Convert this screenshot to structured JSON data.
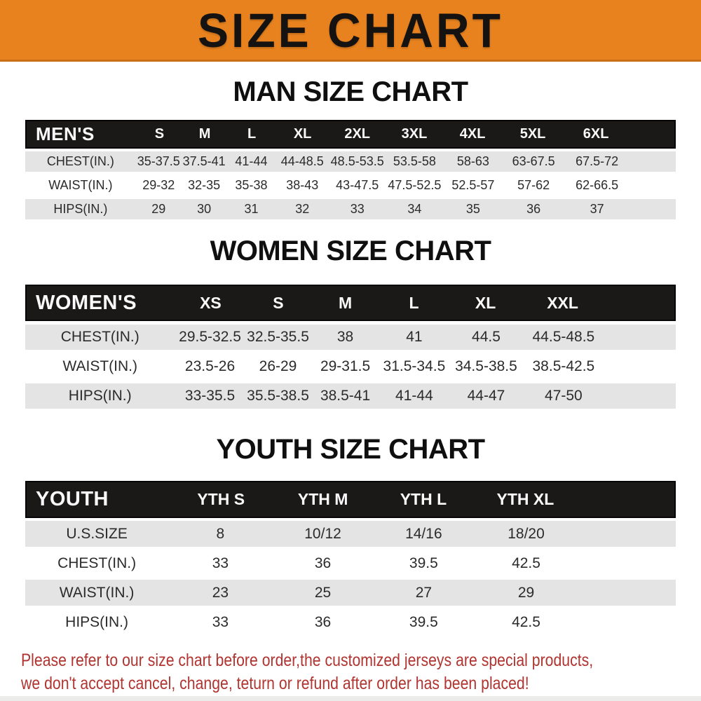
{
  "banner": {
    "title": "SIZE CHART"
  },
  "sections": [
    {
      "heading": "MAN SIZE CHART",
      "table": {
        "header": {
          "label": "MEN'S",
          "columns": [
            "S",
            "M",
            "L",
            "XL",
            "2XL",
            "3XL",
            "4XL",
            "5XL",
            "6XL"
          ]
        },
        "rows": [
          {
            "label": "CHEST(IN.)",
            "values": [
              "35-37.5",
              "37.5-41",
              "41-44",
              "44-48.5",
              "48.5-53.5",
              "53.5-58",
              "58-63",
              "63-67.5",
              "67.5-72"
            ]
          },
          {
            "label": "WAIST(IN.)",
            "values": [
              "29-32",
              "32-35",
              "35-38",
              "38-43",
              "43-47.5",
              "47.5-52.5",
              "52.5-57",
              "57-62",
              "62-66.5"
            ]
          },
          {
            "label": "HIPS(IN.)",
            "values": [
              "29",
              "30",
              "31",
              "32",
              "33",
              "34",
              "35",
              "36",
              "37"
            ]
          }
        ]
      }
    },
    {
      "heading": "WOMEN SIZE CHART",
      "table": {
        "header": {
          "label": "WOMEN'S",
          "columns": [
            "XS",
            "S",
            "M",
            "L",
            "XL",
            "XXL"
          ]
        },
        "rows": [
          {
            "label": "CHEST(IN.)",
            "values": [
              "29.5-32.5",
              "32.5-35.5",
              "38",
              "41",
              "44.5",
              "44.5-48.5"
            ]
          },
          {
            "label": "WAIST(IN.)",
            "values": [
              "23.5-26",
              "26-29",
              "29-31.5",
              "31.5-34.5",
              "34.5-38.5",
              "38.5-42.5"
            ]
          },
          {
            "label": "HIPS(IN.)",
            "values": [
              "33-35.5",
              "35.5-38.5",
              "38.5-41",
              "41-44",
              "44-47",
              "47-50"
            ]
          }
        ]
      }
    },
    {
      "heading": "YOUTH SIZE CHART",
      "table": {
        "header": {
          "label": "YOUTH",
          "columns": [
            "YTH S",
            "YTH M",
            "YTH L",
            "YTH XL"
          ]
        },
        "rows": [
          {
            "label": "U.S.SIZE",
            "values": [
              "8",
              "10/12",
              "14/16",
              "18/20"
            ]
          },
          {
            "label": "CHEST(IN.)",
            "values": [
              "33",
              "36",
              "39.5",
              "42.5"
            ]
          },
          {
            "label": "WAIST(IN.)",
            "values": [
              "23",
              "25",
              "27",
              "29"
            ]
          },
          {
            "label": "HIPS(IN.)",
            "values": [
              "33",
              "36",
              "39.5",
              "42.5"
            ]
          }
        ]
      }
    }
  ],
  "footer": {
    "line1": "Please refer to our size chart before order,the customized jerseys are special products,",
    "line2": "we don't accept cancel, change, teturn or refund after order has been placed!"
  },
  "colors": {
    "banner_bg": "#E8821E",
    "banner_text": "#151312",
    "bar_bg": "#1B1818",
    "row_gray": "#E4E4E4",
    "note_red": "#B03430"
  }
}
